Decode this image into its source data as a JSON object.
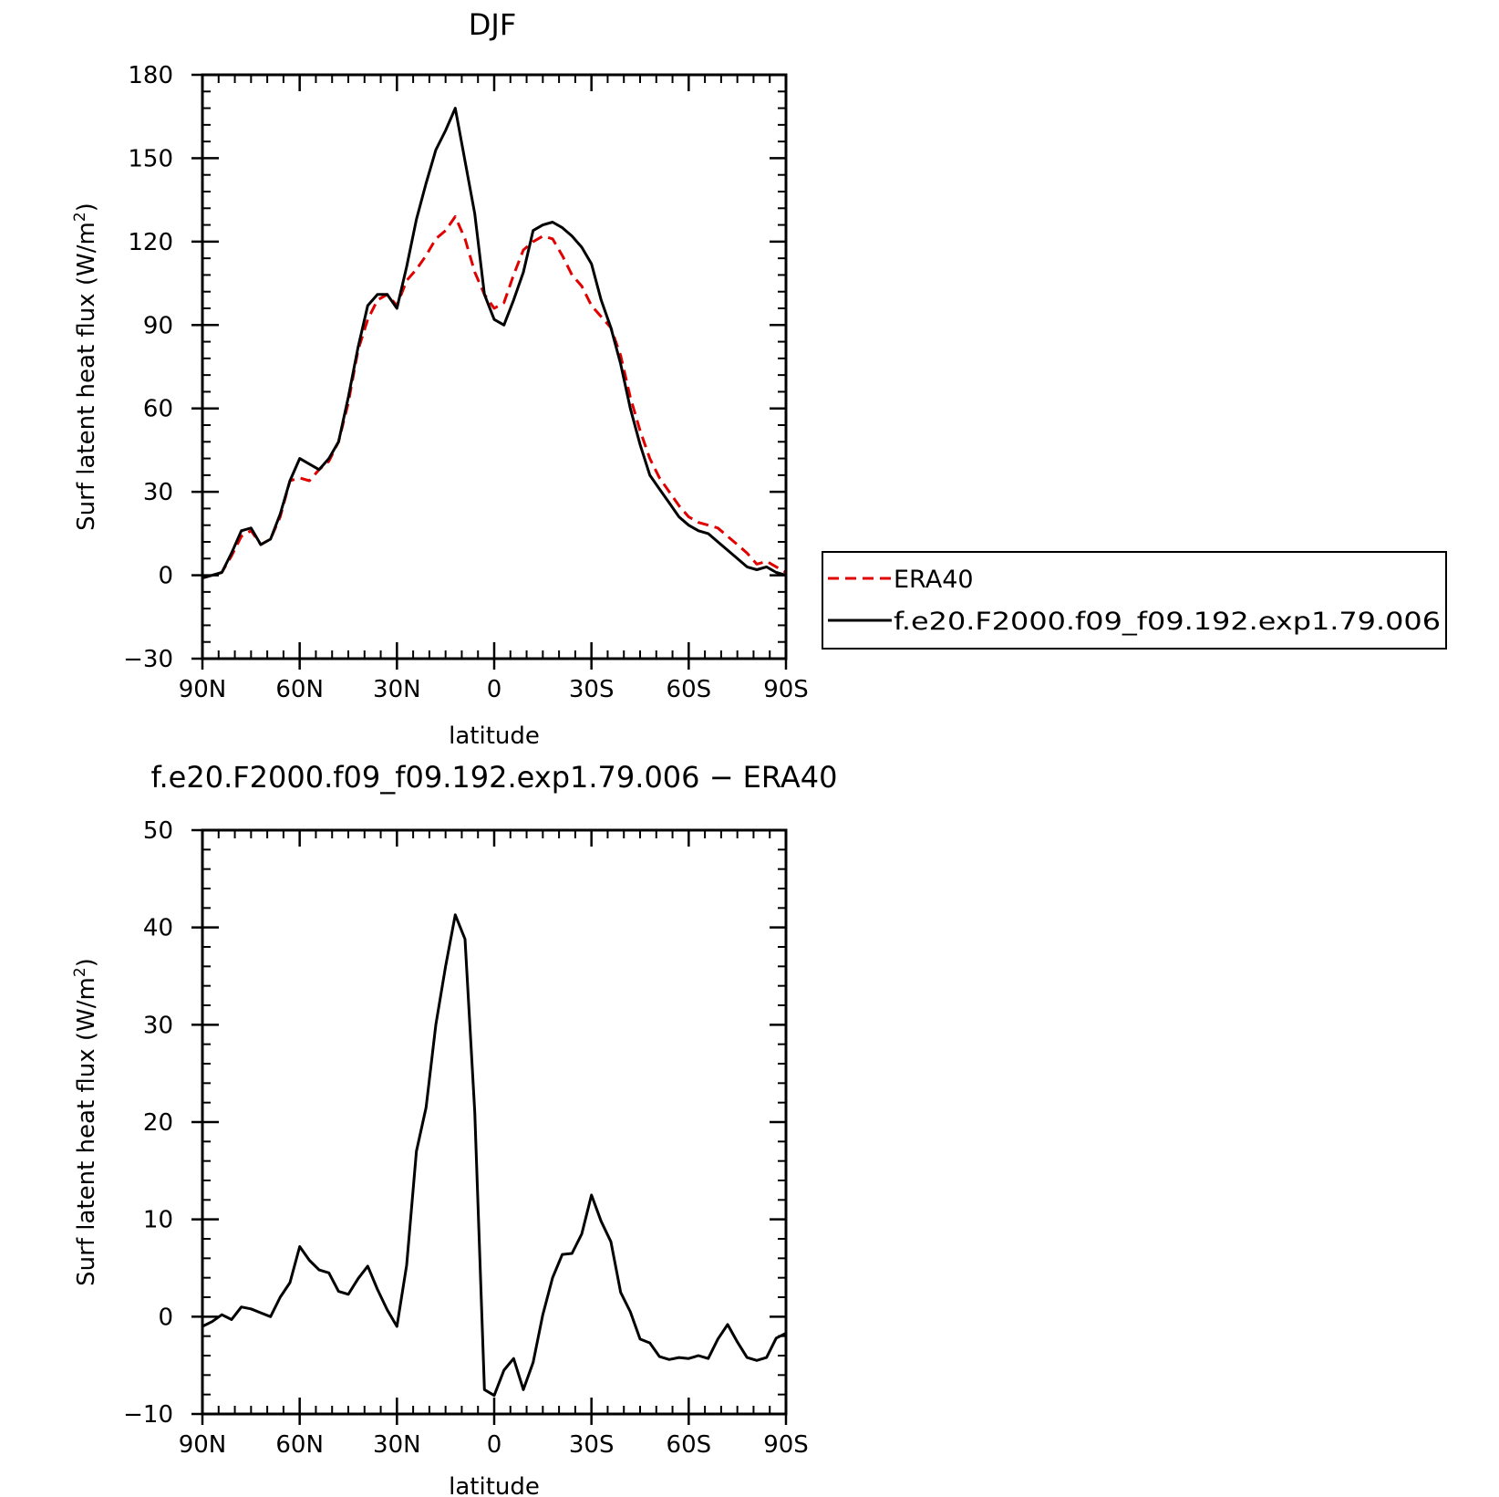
{
  "colors": {
    "era40": "#e00000",
    "model": "#000000",
    "frame": "#000000"
  },
  "chart_data": [
    {
      "type": "line",
      "title": "DJF",
      "xlabel": "latitude",
      "ylabel": "Surf latent heat flux (W/m",
      "ylabel_sup": "2",
      "ylabel_close": ")",
      "xlim": [
        90,
        -90
      ],
      "ylim": [
        -30,
        180
      ],
      "xticks": [
        90,
        60,
        30,
        0,
        -30,
        -60,
        -90
      ],
      "xtick_labels": [
        "90N",
        "60N",
        "30N",
        "0",
        "30S",
        "60S",
        "90S"
      ],
      "yticks": [
        -30,
        0,
        30,
        60,
        90,
        120,
        150,
        180
      ],
      "ytick_labels": [
        "−30",
        "0",
        "30",
        "60",
        "90",
        "120",
        "150",
        "180"
      ],
      "legend": {
        "placement": "right",
        "entries": [
          "ERA40",
          "f.e20.F2000.f09_f09.192.exp1.79.006"
        ]
      },
      "series": [
        {
          "name": "ERA40",
          "style": "dashed",
          "color": "#e00000",
          "x": [
            90,
            87,
            84,
            81,
            78,
            75,
            72,
            69,
            66,
            63,
            60,
            57,
            54,
            51,
            48,
            45,
            42,
            39,
            36,
            33,
            30,
            27,
            24,
            21,
            18,
            15,
            12,
            9,
            6,
            3,
            0,
            -3,
            -6,
            -9,
            -12,
            -15,
            -18,
            -21,
            -24,
            -27,
            -30,
            -33,
            -36,
            -39,
            -42,
            -45,
            -48,
            -51,
            -54,
            -57,
            -60,
            -63,
            -66,
            -69,
            -72,
            -75,
            -78,
            -81,
            -84,
            -87,
            -90
          ],
          "y": [
            -1,
            0,
            1,
            7,
            14,
            16,
            11,
            13,
            21,
            34,
            35,
            34,
            38,
            41,
            48,
            62,
            81,
            92,
            99,
            101,
            97,
            106,
            110,
            115,
            121,
            124,
            129,
            121,
            109,
            101,
            96,
            98,
            108,
            117,
            120,
            122,
            121,
            115,
            108,
            104,
            97,
            93,
            89,
            79,
            64,
            52,
            42,
            35,
            30,
            25,
            21,
            19,
            18,
            17,
            14,
            11,
            8,
            4,
            5,
            3,
            1
          ]
        },
        {
          "name": "f.e20.F2000.f09_f09.192.exp1.79.006",
          "style": "solid",
          "color": "#000000",
          "x": [
            90,
            87,
            84,
            81,
            78,
            75,
            72,
            69,
            66,
            63,
            60,
            57,
            54,
            51,
            48,
            45,
            42,
            39,
            36,
            33,
            30,
            27,
            24,
            21,
            18,
            15,
            12,
            9,
            6,
            3,
            0,
            -3,
            -6,
            -9,
            -12,
            -15,
            -18,
            -21,
            -24,
            -27,
            -30,
            -33,
            -36,
            -39,
            -42,
            -45,
            -48,
            -51,
            -54,
            -57,
            -60,
            -63,
            -66,
            -69,
            -72,
            -75,
            -78,
            -81,
            -84,
            -87,
            -90
          ],
          "y": [
            -1,
            0,
            1,
            8,
            16,
            17,
            11,
            13,
            22,
            34,
            42,
            40,
            38,
            42,
            48,
            64,
            82,
            97,
            101,
            101,
            96,
            111,
            128,
            141,
            153,
            160,
            168,
            149,
            130,
            101,
            92,
            90,
            99,
            109,
            124,
            126,
            127,
            125,
            122,
            118,
            112,
            99,
            89,
            76,
            60,
            47,
            36,
            31,
            26,
            21,
            18,
            16,
            15,
            12,
            9,
            6,
            3,
            2,
            3,
            1,
            0
          ]
        }
      ]
    },
    {
      "type": "line",
      "title": "f.e20.F2000.f09_f09.192.exp1.79.006 − ERA40",
      "xlabel": "latitude",
      "ylabel": "Surf latent heat flux (W/m",
      "ylabel_sup": "2",
      "ylabel_close": ")",
      "xlim": [
        90,
        -90
      ],
      "ylim": [
        -10,
        50
      ],
      "xticks": [
        90,
        60,
        30,
        0,
        -30,
        -60,
        -90
      ],
      "xtick_labels": [
        "90N",
        "60N",
        "30N",
        "0",
        "30S",
        "60S",
        "90S"
      ],
      "yticks": [
        -10,
        0,
        10,
        20,
        30,
        40,
        50
      ],
      "ytick_labels": [
        "−10",
        "0",
        "10",
        "20",
        "30",
        "40",
        "50"
      ],
      "series": [
        {
          "style": "solid",
          "color": "#000000",
          "x": [
            90,
            87,
            84,
            81,
            78,
            75,
            72,
            69,
            66,
            63,
            60,
            57,
            54,
            51,
            48,
            45,
            42,
            39,
            36,
            33,
            30,
            27,
            24,
            21,
            18,
            15,
            12,
            9,
            6,
            3,
            0,
            -3,
            -6,
            -9,
            -12,
            -15,
            -18,
            -21,
            -24,
            -27,
            -30,
            -33,
            -36,
            -39,
            -42,
            -45,
            -48,
            -51,
            -54,
            -57,
            -60,
            -63,
            -66,
            -69,
            -72,
            -75,
            -78,
            -81,
            -84,
            -87,
            -90
          ],
          "y": [
            -1,
            -0.5,
            0.2,
            -0.3,
            1,
            0.8,
            0.4,
            0,
            2,
            3.5,
            7.2,
            5.8,
            4.8,
            4.5,
            2.6,
            2.3,
            3.9,
            5.2,
            2.8,
            0.7,
            -1,
            5.3,
            17,
            21.5,
            30,
            36,
            41.3,
            38.8,
            21,
            -7.5,
            -8.1,
            -5.5,
            -4.3,
            -7.5,
            -4.7,
            0.2,
            4,
            6.4,
            6.5,
            8.5,
            12.5,
            9.8,
            7.7,
            2.5,
            0.5,
            -2.3,
            -2.7,
            -4.1,
            -4.4,
            -4.2,
            -4.3,
            -4,
            -4.3,
            -2.3,
            -0.8,
            -2.6,
            -4.2,
            -4.5,
            -4.2,
            -2.2,
            -1.7
          ]
        }
      ]
    }
  ]
}
